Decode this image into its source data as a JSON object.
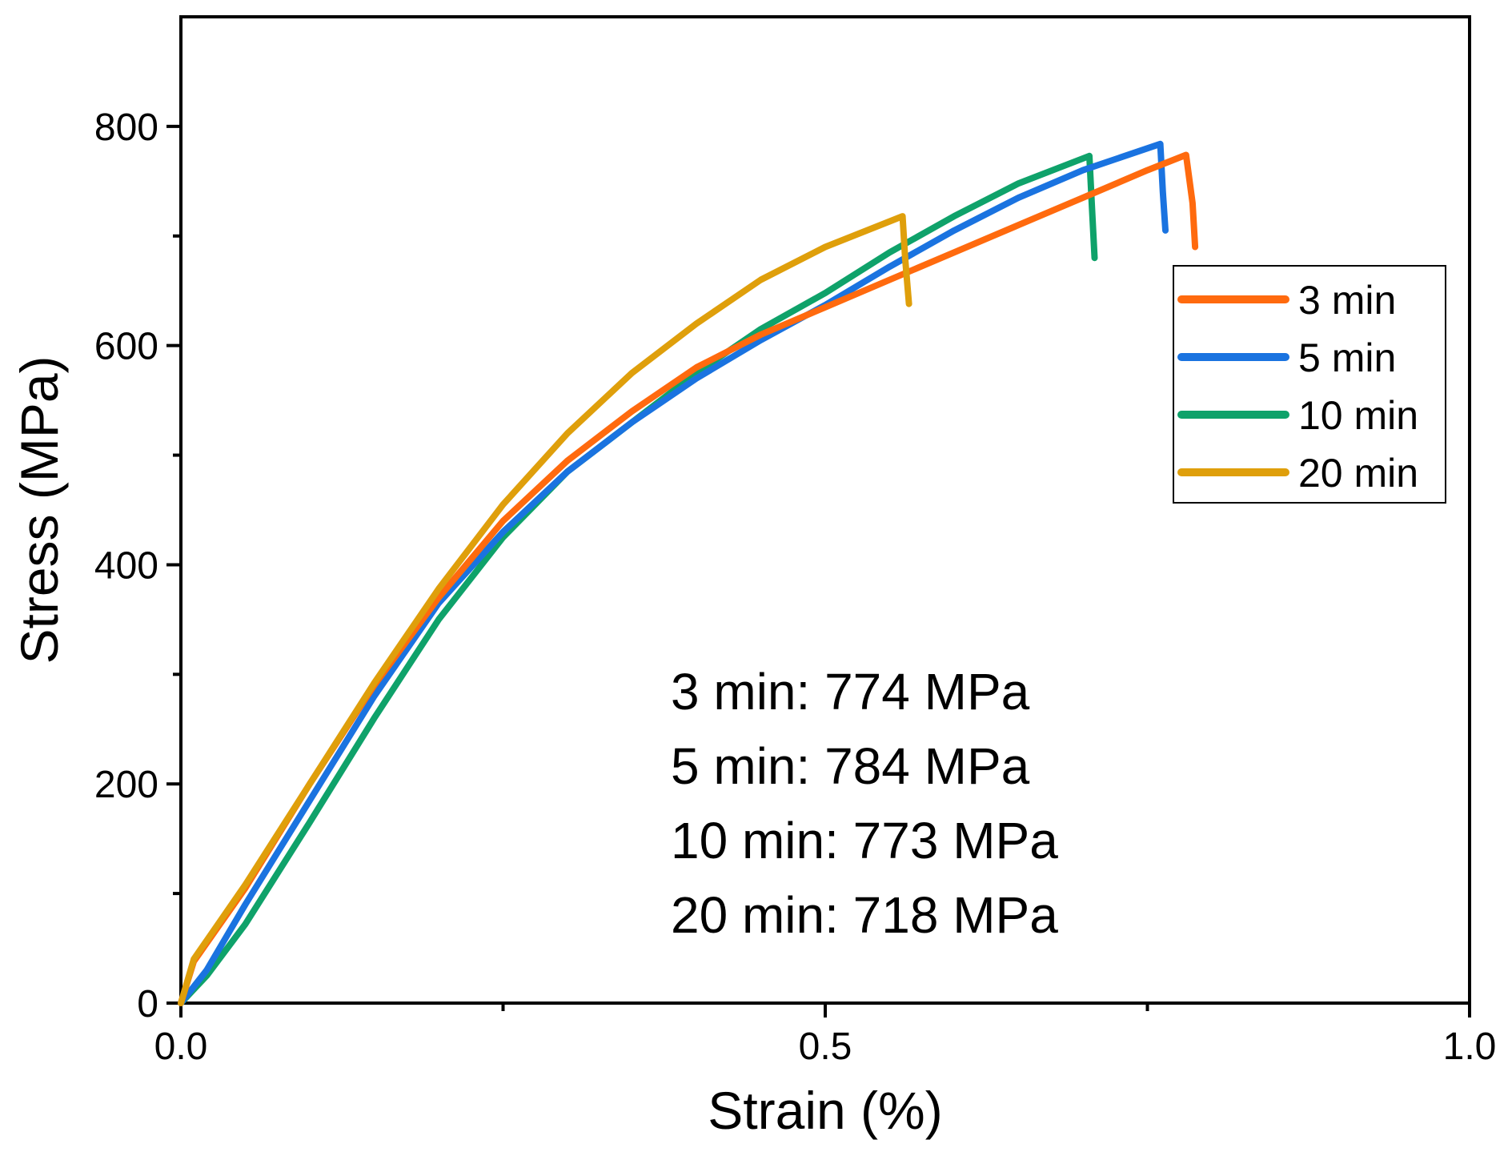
{
  "chart_data": {
    "type": "line",
    "title": "",
    "xlabel": "Strain (%)",
    "ylabel": "Stress (MPa)",
    "xlim": [
      0,
      1.0
    ],
    "ylim": [
      0,
      900
    ],
    "x_ticks": [
      0.0,
      0.5,
      1.0
    ],
    "x_tick_labels": [
      "0.0",
      "0.5",
      "1.0"
    ],
    "x_minor_ticks": [
      0.25,
      0.75
    ],
    "y_ticks": [
      0,
      200,
      400,
      600,
      800
    ],
    "y_tick_labels": [
      "0",
      "200",
      "400",
      "600",
      "800"
    ],
    "y_minor_ticks": [
      100,
      300,
      500,
      700
    ],
    "grid": false,
    "legend_position": "right-middle",
    "series": [
      {
        "name": "3 min",
        "color": "#FF6A0E",
        "x": [
          0,
          0.01,
          0.05,
          0.1,
          0.15,
          0.2,
          0.25,
          0.3,
          0.35,
          0.4,
          0.45,
          0.5,
          0.55,
          0.6,
          0.65,
          0.7,
          0.75,
          0.78,
          0.785,
          0.787
        ],
        "y": [
          0,
          38,
          105,
          200,
          290,
          370,
          440,
          495,
          540,
          580,
          610,
          635,
          660,
          685,
          710,
          735,
          760,
          774,
          730,
          690
        ]
      },
      {
        "name": "5 min",
        "color": "#1A73E0",
        "x": [
          0,
          0.02,
          0.05,
          0.1,
          0.15,
          0.2,
          0.25,
          0.3,
          0.35,
          0.4,
          0.45,
          0.5,
          0.55,
          0.6,
          0.65,
          0.7,
          0.76,
          0.762,
          0.764
        ],
        "y": [
          0,
          30,
          90,
          185,
          280,
          365,
          430,
          485,
          530,
          570,
          605,
          637,
          672,
          705,
          735,
          760,
          784,
          740,
          705
        ]
      },
      {
        "name": "10 min",
        "color": "#0FA26A",
        "x": [
          0,
          0.02,
          0.05,
          0.1,
          0.15,
          0.2,
          0.25,
          0.3,
          0.35,
          0.4,
          0.45,
          0.5,
          0.55,
          0.6,
          0.65,
          0.705,
          0.707,
          0.709
        ],
        "y": [
          0,
          25,
          72,
          165,
          260,
          350,
          425,
          485,
          530,
          575,
          615,
          648,
          685,
          718,
          748,
          773,
          725,
          680
        ]
      },
      {
        "name": "20 min",
        "color": "#DF9F0B",
        "x": [
          0,
          0.01,
          0.05,
          0.1,
          0.15,
          0.2,
          0.25,
          0.3,
          0.35,
          0.4,
          0.45,
          0.5,
          0.56,
          0.562,
          0.565
        ],
        "y": [
          0,
          40,
          108,
          200,
          292,
          378,
          455,
          520,
          575,
          620,
          660,
          690,
          718,
          680,
          638
        ]
      }
    ],
    "annotations": [
      "3 min: 774 MPa",
      "5 min: 784 MPa",
      "10 min: 773 MPa",
      "20 min: 718 MPa"
    ]
  }
}
